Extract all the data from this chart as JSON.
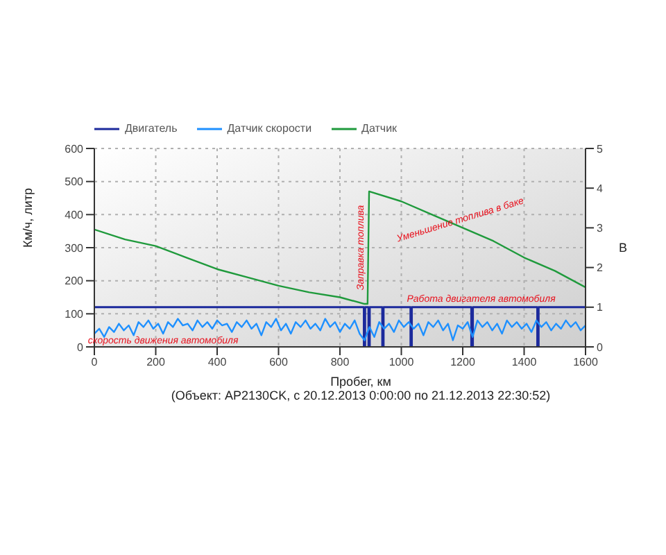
{
  "chart_data": {
    "type": "line",
    "xlabel": "Пробег, км",
    "ylabel": "Км/ч, литр",
    "y2label": "В",
    "xlim": [
      0,
      1600
    ],
    "xticks": [
      0,
      200,
      400,
      600,
      800,
      1000,
      1200,
      1400,
      1600
    ],
    "ylim": [
      0,
      600
    ],
    "yticks": [
      0,
      100,
      200,
      300,
      400,
      500,
      600
    ],
    "y2lim": [
      0,
      5
    ],
    "y2ticks": [
      0,
      1,
      2,
      3,
      4,
      5
    ],
    "grid": true,
    "legend": "top left",
    "marker": "none",
    "line_style": "solid",
    "series": [
      {
        "name": "Двигатель",
        "color": "#1c2a9c",
        "axis": "y2",
        "x": [
          0,
          878,
          878,
          882,
          882,
          893,
          893,
          897,
          897,
          938,
          938,
          942,
          942,
          1030,
          1030,
          1034,
          1034,
          1228,
          1228,
          1233,
          1233,
          1443,
          1443,
          1447,
          1447,
          1600
        ],
        "values": [
          1,
          1,
          0,
          0,
          1,
          1,
          0,
          0,
          1,
          1,
          0,
          0,
          1,
          1,
          0,
          0,
          1,
          1,
          0,
          0,
          1,
          1,
          0,
          0,
          1,
          1
        ]
      },
      {
        "name": "Датчик скорости",
        "color": "#1e90ff",
        "x": [
          0,
          16,
          32,
          48,
          64,
          80,
          96,
          112,
          128,
          144,
          160,
          176,
          192,
          208,
          224,
          240,
          256,
          272,
          288,
          304,
          320,
          336,
          352,
          368,
          384,
          400,
          416,
          432,
          448,
          464,
          480,
          496,
          512,
          528,
          544,
          560,
          576,
          592,
          608,
          624,
          640,
          656,
          672,
          688,
          704,
          720,
          736,
          752,
          768,
          784,
          800,
          816,
          832,
          848,
          864,
          880,
          896,
          912,
          928,
          944,
          960,
          976,
          992,
          1008,
          1024,
          1040,
          1056,
          1072,
          1088,
          1104,
          1120,
          1136,
          1152,
          1168,
          1184,
          1200,
          1216,
          1232,
          1248,
          1264,
          1280,
          1296,
          1312,
          1328,
          1344,
          1360,
          1376,
          1392,
          1408,
          1424,
          1440,
          1456,
          1472,
          1488,
          1504,
          1520,
          1536,
          1552,
          1568,
          1584,
          1600
        ],
        "values": [
          40,
          55,
          30,
          60,
          45,
          70,
          50,
          65,
          35,
          75,
          60,
          80,
          55,
          70,
          40,
          75,
          60,
          85,
          65,
          70,
          50,
          80,
          60,
          75,
          55,
          80,
          65,
          70,
          45,
          75,
          60,
          80,
          55,
          70,
          35,
          75,
          60,
          85,
          50,
          70,
          40,
          75,
          60,
          80,
          55,
          70,
          50,
          85,
          60,
          75,
          45,
          70,
          55,
          80,
          40,
          20,
          60,
          30,
          75,
          55,
          70,
          45,
          80,
          60,
          75,
          55,
          70,
          35,
          75,
          60,
          80,
          50,
          70,
          20,
          65,
          55,
          75,
          30,
          80,
          60,
          75,
          50,
          70,
          40,
          80,
          60,
          75,
          55,
          70,
          45,
          80,
          60,
          75,
          50,
          70,
          55,
          80,
          60,
          75,
          50,
          65
        ]
      },
      {
        "name": "Датчик",
        "color": "#1f9a3c",
        "x": [
          0,
          100,
          200,
          300,
          400,
          500,
          600,
          700,
          800,
          880,
          890,
          895,
          1000,
          1100,
          1200,
          1300,
          1400,
          1500,
          1600
        ],
        "values": [
          355,
          325,
          305,
          270,
          235,
          210,
          185,
          165,
          150,
          130,
          130,
          470,
          440,
          400,
          360,
          320,
          270,
          230,
          180
        ]
      }
    ],
    "annotations": [
      {
        "text": "скорость движения автомобиля",
        "x": 224,
        "y": 40
      },
      {
        "text": "Заправка топлива",
        "x": 895,
        "y": 300
      },
      {
        "text": "Уменьшение топлива в баке",
        "x": 1200,
        "y": 360
      },
      {
        "text": "Работа двигателя автомобиля",
        "x": 1260,
        "y": 120
      },
      "(Объект: AP2130CK, с 20.12.2013 0:00:00 по 21.12.2013 22:30:52)"
    ]
  }
}
